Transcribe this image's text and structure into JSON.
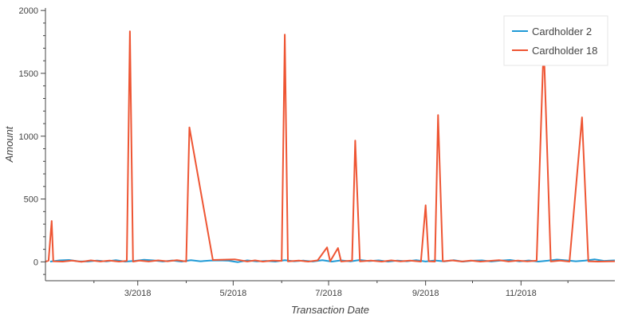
{
  "chart_data": {
    "type": "line",
    "xlabel": "Transaction Date",
    "ylabel": "Amount",
    "x_domain": [
      "2018-01-01",
      "2018-12-31"
    ],
    "ylim": [
      -150,
      2020
    ],
    "y_ticks": [
      0,
      500,
      1000,
      1500,
      2000
    ],
    "x_ticks": [
      {
        "date": "2018-03-01",
        "label": "3/2018"
      },
      {
        "date": "2018-05-01",
        "label": "5/2018"
      },
      {
        "date": "2018-07-01",
        "label": "7/2018"
      },
      {
        "date": "2018-09-01",
        "label": "9/2018"
      },
      {
        "date": "2018-11-01",
        "label": "11/2018"
      }
    ],
    "legend_position": "top-right",
    "grid": false,
    "series": [
      {
        "name": "Cardholder 2",
        "color": "#1f9ad6",
        "points": [
          [
            "2018-01-04",
            2
          ],
          [
            "2018-01-10",
            12
          ],
          [
            "2018-01-16",
            15
          ],
          [
            "2018-01-22",
            5
          ],
          [
            "2018-01-28",
            3
          ],
          [
            "2018-02-03",
            10
          ],
          [
            "2018-02-09",
            4
          ],
          [
            "2018-02-15",
            14
          ],
          [
            "2018-02-21",
            2
          ],
          [
            "2018-02-27",
            8
          ],
          [
            "2018-03-05",
            16
          ],
          [
            "2018-03-11",
            12
          ],
          [
            "2018-03-17",
            3
          ],
          [
            "2018-03-23",
            11
          ],
          [
            "2018-03-29",
            2
          ],
          [
            "2018-04-04",
            14
          ],
          [
            "2018-04-10",
            5
          ],
          [
            "2018-04-16",
            10
          ],
          [
            "2018-04-22",
            12
          ],
          [
            "2018-04-28",
            9
          ],
          [
            "2018-05-04",
            -2
          ],
          [
            "2018-05-10",
            12
          ],
          [
            "2018-05-16",
            4
          ],
          [
            "2018-05-22",
            8
          ],
          [
            "2018-05-28",
            2
          ],
          [
            "2018-06-03",
            13
          ],
          [
            "2018-06-09",
            5
          ],
          [
            "2018-06-15",
            10
          ],
          [
            "2018-06-21",
            3
          ],
          [
            "2018-06-27",
            14
          ],
          [
            "2018-07-03",
            2
          ],
          [
            "2018-07-09",
            12
          ],
          [
            "2018-07-15",
            4
          ],
          [
            "2018-07-21",
            15
          ],
          [
            "2018-07-27",
            6
          ],
          [
            "2018-08-02",
            12
          ],
          [
            "2018-08-08",
            2
          ],
          [
            "2018-08-14",
            10
          ],
          [
            "2018-08-20",
            5
          ],
          [
            "2018-08-26",
            13
          ],
          [
            "2018-09-01",
            3
          ],
          [
            "2018-09-07",
            11
          ],
          [
            "2018-09-13",
            4
          ],
          [
            "2018-09-19",
            14
          ],
          [
            "2018-09-25",
            2
          ],
          [
            "2018-10-01",
            9
          ],
          [
            "2018-10-07",
            12
          ],
          [
            "2018-10-13",
            3
          ],
          [
            "2018-10-19",
            10
          ],
          [
            "2018-10-25",
            15
          ],
          [
            "2018-10-31",
            4
          ],
          [
            "2018-11-06",
            11
          ],
          [
            "2018-11-12",
            2
          ],
          [
            "2018-11-18",
            9
          ],
          [
            "2018-11-24",
            18
          ],
          [
            "2018-11-30",
            12
          ],
          [
            "2018-12-06",
            5
          ],
          [
            "2018-12-12",
            10
          ],
          [
            "2018-12-18",
            20
          ],
          [
            "2018-12-24",
            8
          ],
          [
            "2018-12-31",
            12
          ]
        ]
      },
      {
        "name": "Cardholder 18",
        "color": "#ee5533",
        "points": [
          [
            "2018-01-01",
            2
          ],
          [
            "2018-01-03",
            10
          ],
          [
            "2018-01-05",
            325
          ],
          [
            "2018-01-06",
            5
          ],
          [
            "2018-01-12",
            2
          ],
          [
            "2018-01-18",
            10
          ],
          [
            "2018-01-24",
            1
          ],
          [
            "2018-01-30",
            12
          ],
          [
            "2018-02-05",
            3
          ],
          [
            "2018-02-11",
            10
          ],
          [
            "2018-02-17",
            2
          ],
          [
            "2018-02-22",
            8
          ],
          [
            "2018-02-24",
            1835
          ],
          [
            "2018-02-26",
            2
          ],
          [
            "2018-03-02",
            10
          ],
          [
            "2018-03-08",
            3
          ],
          [
            "2018-03-14",
            12
          ],
          [
            "2018-03-20",
            5
          ],
          [
            "2018-03-26",
            14
          ],
          [
            "2018-04-01",
            3
          ],
          [
            "2018-04-03",
            1070
          ],
          [
            "2018-04-18",
            15
          ],
          [
            "2018-05-02",
            20
          ],
          [
            "2018-05-10",
            3
          ],
          [
            "2018-05-15",
            12
          ],
          [
            "2018-05-20",
            2
          ],
          [
            "2018-05-26",
            10
          ],
          [
            "2018-06-01",
            8
          ],
          [
            "2018-06-03",
            1808
          ],
          [
            "2018-06-05",
            4
          ],
          [
            "2018-06-12",
            10
          ],
          [
            "2018-06-18",
            2
          ],
          [
            "2018-06-24",
            12
          ],
          [
            "2018-06-30",
            115
          ],
          [
            "2018-07-02",
            5
          ],
          [
            "2018-07-07",
            110
          ],
          [
            "2018-07-09",
            3
          ],
          [
            "2018-07-16",
            10
          ],
          [
            "2018-07-18",
            965
          ],
          [
            "2018-07-21",
            4
          ],
          [
            "2018-07-28",
            10
          ],
          [
            "2018-08-04",
            2
          ],
          [
            "2018-08-10",
            12
          ],
          [
            "2018-08-16",
            4
          ],
          [
            "2018-08-22",
            10
          ],
          [
            "2018-08-29",
            2
          ],
          [
            "2018-09-01",
            450
          ],
          [
            "2018-09-03",
            5
          ],
          [
            "2018-09-07",
            2
          ],
          [
            "2018-09-09",
            1168
          ],
          [
            "2018-09-12",
            5
          ],
          [
            "2018-09-18",
            12
          ],
          [
            "2018-09-24",
            3
          ],
          [
            "2018-09-30",
            10
          ],
          [
            "2018-10-06",
            2
          ],
          [
            "2018-10-12",
            8
          ],
          [
            "2018-10-18",
            14
          ],
          [
            "2018-10-24",
            3
          ],
          [
            "2018-10-30",
            10
          ],
          [
            "2018-11-05",
            4
          ],
          [
            "2018-11-11",
            9
          ],
          [
            "2018-11-15",
            1555
          ],
          [
            "2018-11-16",
            1555
          ],
          [
            "2018-11-20",
            3
          ],
          [
            "2018-11-26",
            10
          ],
          [
            "2018-12-02",
            2
          ],
          [
            "2018-12-10",
            1150
          ],
          [
            "2018-12-14",
            5
          ],
          [
            "2018-12-20",
            2
          ],
          [
            "2018-12-31",
            5
          ]
        ]
      }
    ]
  }
}
